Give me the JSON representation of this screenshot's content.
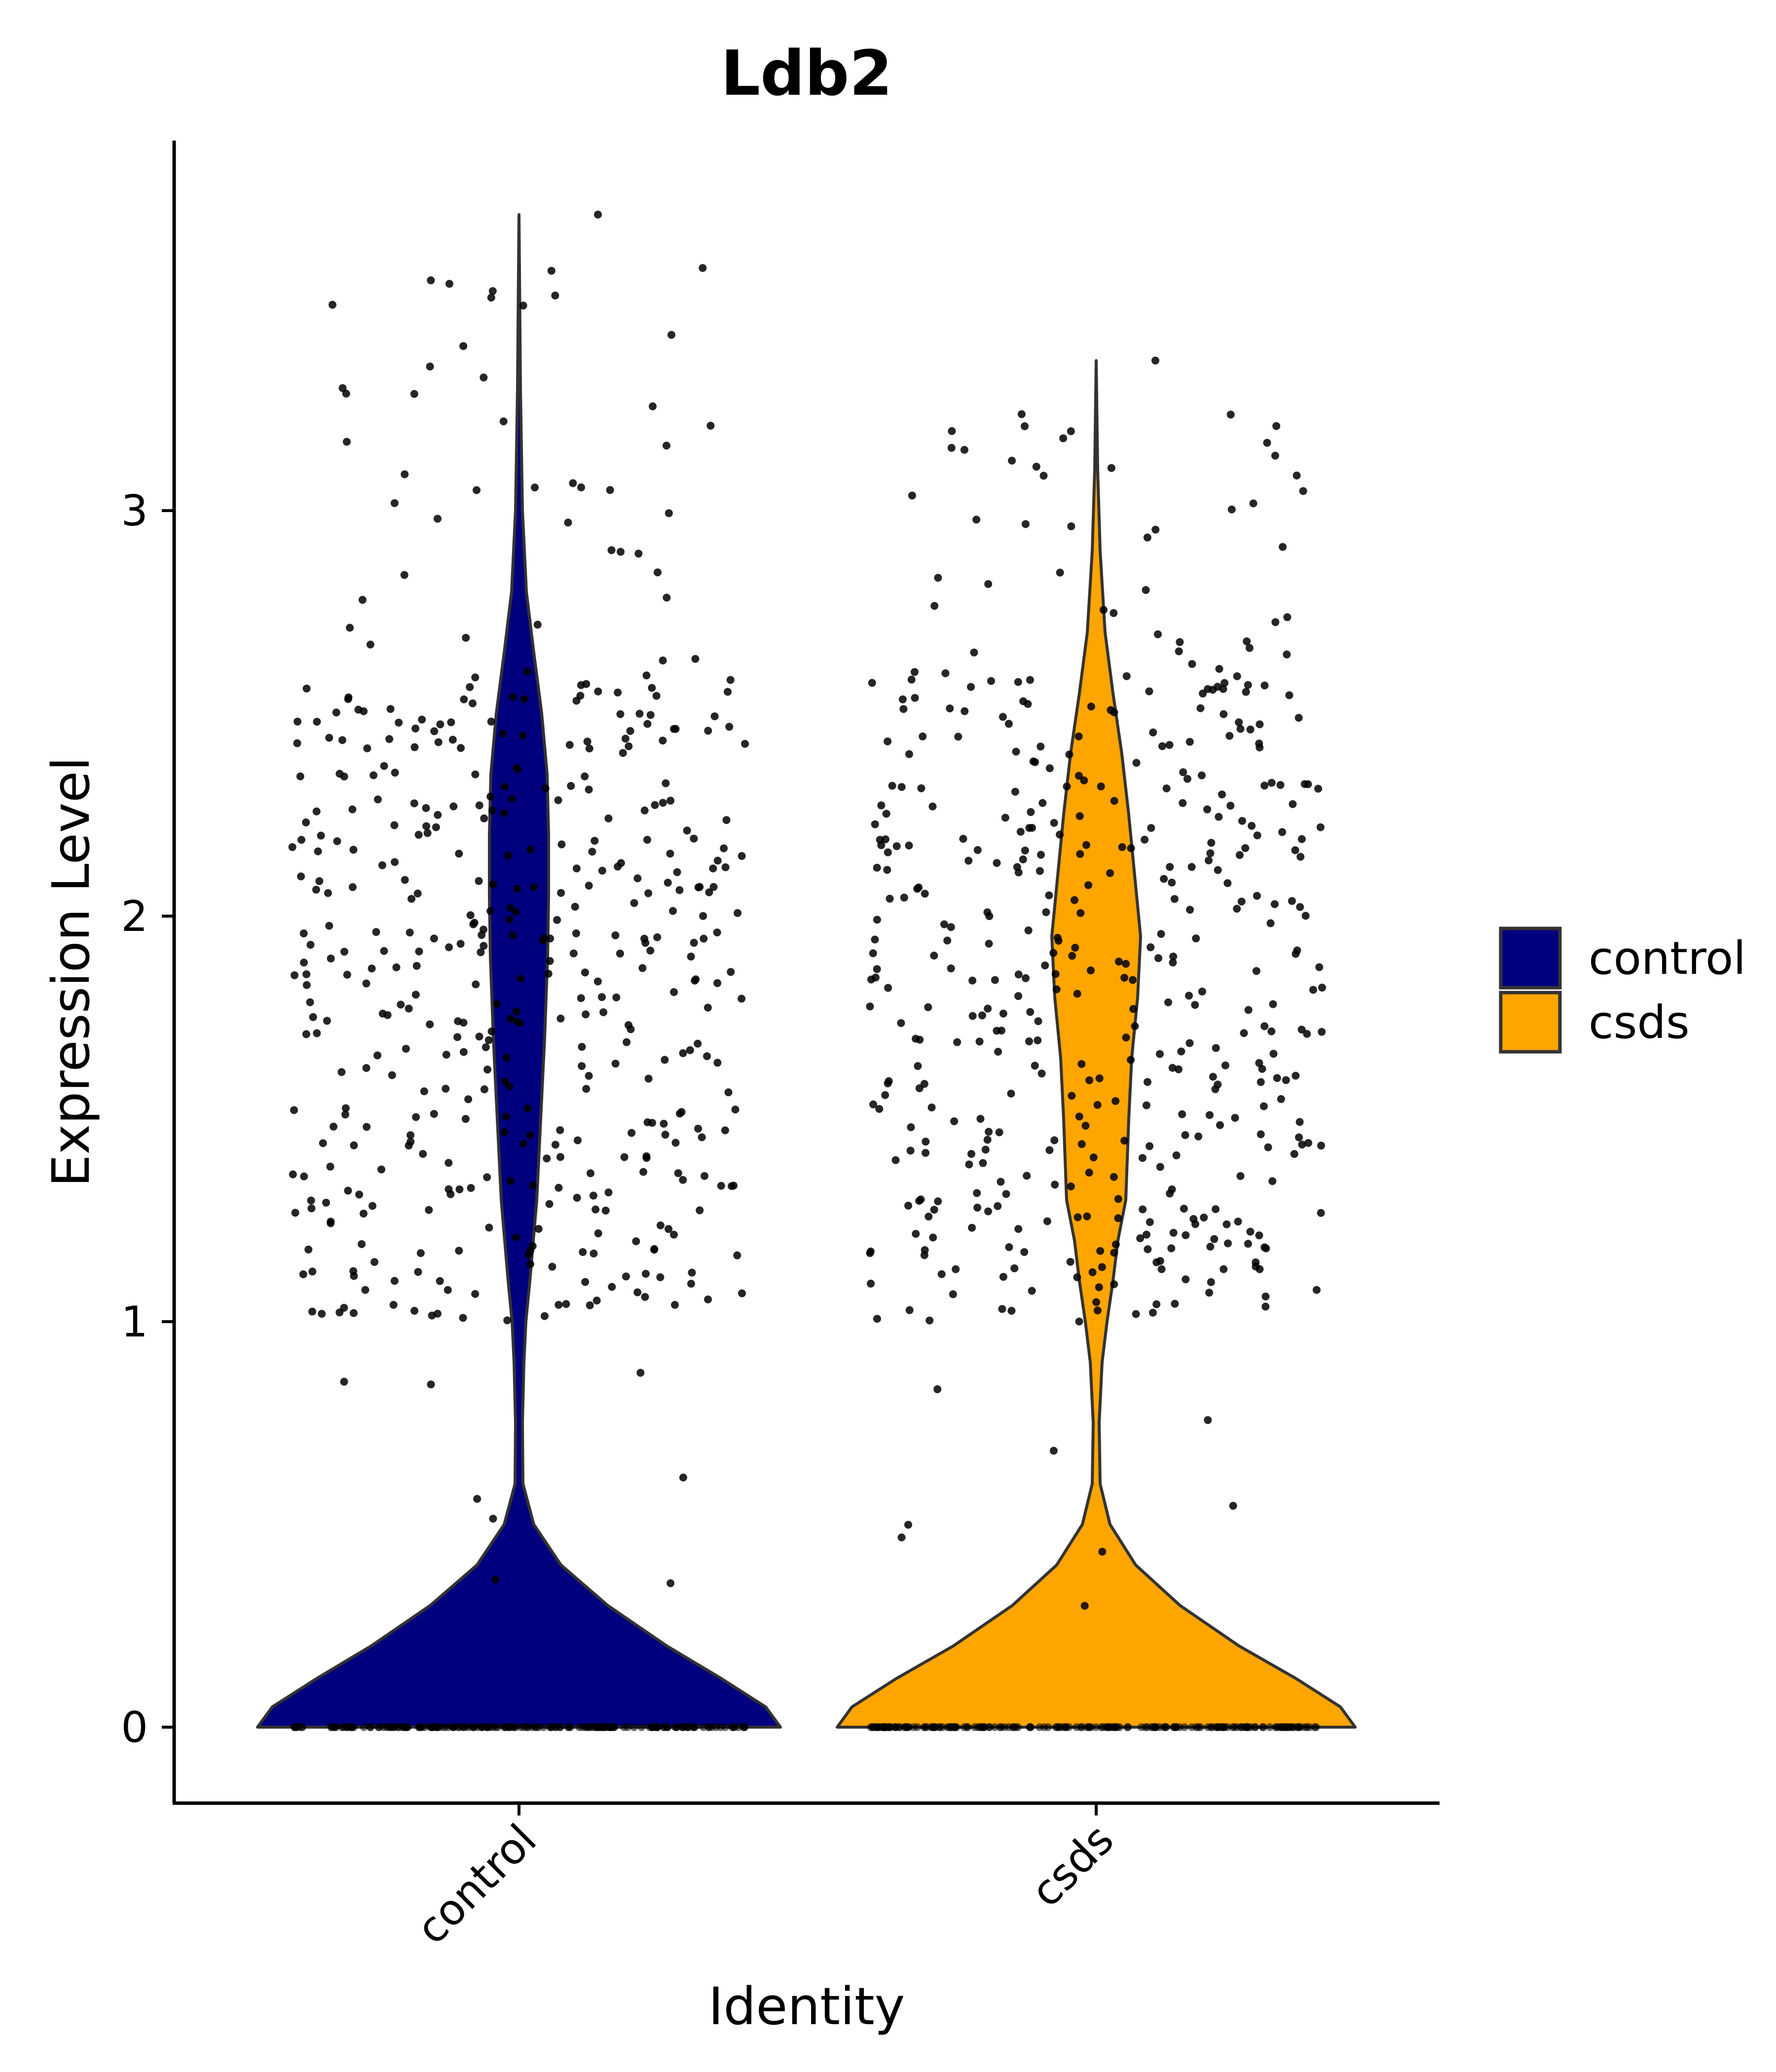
{
  "chart_data": {
    "type": "violin",
    "title": "Ldb2",
    "xlabel": "Identity",
    "ylabel": "Expression Level",
    "categories": [
      "control",
      "csds"
    ],
    "ylim": [
      -0.18,
      3.92
    ],
    "yticks": [
      0,
      1,
      2,
      3
    ],
    "legend": {
      "placement": "right",
      "entries": [
        {
          "label": "control",
          "color": "#00007F"
        },
        {
          "label": "csds",
          "color": "#FFA500"
        }
      ]
    },
    "series": [
      {
        "name": "control",
        "color": "#00007F",
        "max": 3.73,
        "points_summary": "many cells at 0; expressing cells spread roughly 1.0 to 2.6, sparse outliers up to 3.73"
      },
      {
        "name": "csds",
        "color": "#FFA500",
        "max": 3.37,
        "points_summary": "many cells at 0; expressing cells spread roughly 1.0 to 2.6, sparse outliers up to 3.37"
      }
    ],
    "grid": false
  }
}
